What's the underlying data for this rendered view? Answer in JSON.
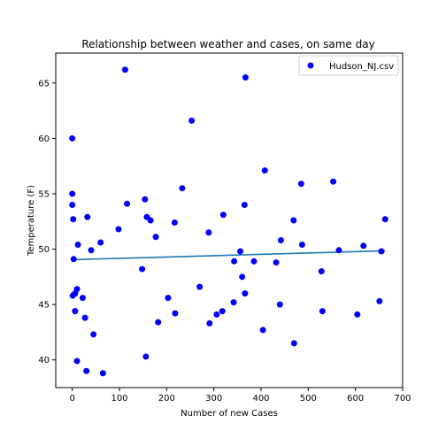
{
  "chart_data": {
    "type": "scatter",
    "title": "Relationship between weather and cases, on same day",
    "xlabel": "Number of new Cases",
    "ylabel": "Temperature (F)",
    "xlim": [
      -35,
      700
    ],
    "ylim": [
      37.5,
      67.7
    ],
    "xticks": [
      0,
      100,
      200,
      300,
      400,
      500,
      600,
      700
    ],
    "yticks": [
      40,
      45,
      50,
      55,
      60,
      65
    ],
    "grid": false,
    "legend_position": "top-right",
    "series": [
      {
        "name": "Hudson_NJ.csv",
        "color": "#0000ff",
        "marker": "circle",
        "points": [
          [
            0,
            60.0
          ],
          [
            0,
            55.0
          ],
          [
            0,
            54.0
          ],
          [
            2,
            52.7
          ],
          [
            3,
            49.1
          ],
          [
            1,
            45.8
          ],
          [
            6,
            46.0
          ],
          [
            10,
            46.4
          ],
          [
            6,
            44.4
          ],
          [
            12,
            50.4
          ],
          [
            10,
            39.9
          ],
          [
            22,
            45.6
          ],
          [
            27,
            43.8
          ],
          [
            30,
            39.0
          ],
          [
            32,
            52.9
          ],
          [
            40,
            49.9
          ],
          [
            45,
            42.3
          ],
          [
            60,
            50.6
          ],
          [
            65,
            38.8
          ],
          [
            98,
            51.8
          ],
          [
            112,
            66.2
          ],
          [
            116,
            54.1
          ],
          [
            148,
            48.2
          ],
          [
            154,
            54.5
          ],
          [
            156,
            40.3
          ],
          [
            158,
            52.9
          ],
          [
            166,
            52.6
          ],
          [
            177,
            51.1
          ],
          [
            182,
            43.4
          ],
          [
            203,
            45.6
          ],
          [
            217,
            52.4
          ],
          [
            218,
            44.2
          ],
          [
            233,
            55.5
          ],
          [
            253,
            61.6
          ],
          [
            270,
            46.6
          ],
          [
            289,
            51.5
          ],
          [
            291,
            43.3
          ],
          [
            306,
            44.1
          ],
          [
            318,
            44.4
          ],
          [
            320,
            53.1
          ],
          [
            342,
            45.2
          ],
          [
            343,
            48.9
          ],
          [
            356,
            49.8
          ],
          [
            360,
            47.5
          ],
          [
            365,
            54.0
          ],
          [
            366,
            46.0
          ],
          [
            367,
            65.5
          ],
          [
            385,
            48.9
          ],
          [
            404,
            42.7
          ],
          [
            408,
            57.1
          ],
          [
            432,
            48.8
          ],
          [
            440,
            45.0
          ],
          [
            442,
            50.8
          ],
          [
            469,
            52.6
          ],
          [
            470,
            41.5
          ],
          [
            485,
            55.9
          ],
          [
            487,
            50.4
          ],
          [
            528,
            48.0
          ],
          [
            530,
            44.4
          ],
          [
            553,
            56.1
          ],
          [
            565,
            49.9
          ],
          [
            604,
            44.1
          ],
          [
            617,
            50.3
          ],
          [
            651,
            45.3
          ],
          [
            655,
            49.8
          ],
          [
            663,
            52.7
          ]
        ]
      }
    ],
    "trendline": {
      "color": "#1f77b4",
      "x": [
        0,
        663
      ],
      "y": [
        49.05,
        49.85
      ]
    }
  }
}
